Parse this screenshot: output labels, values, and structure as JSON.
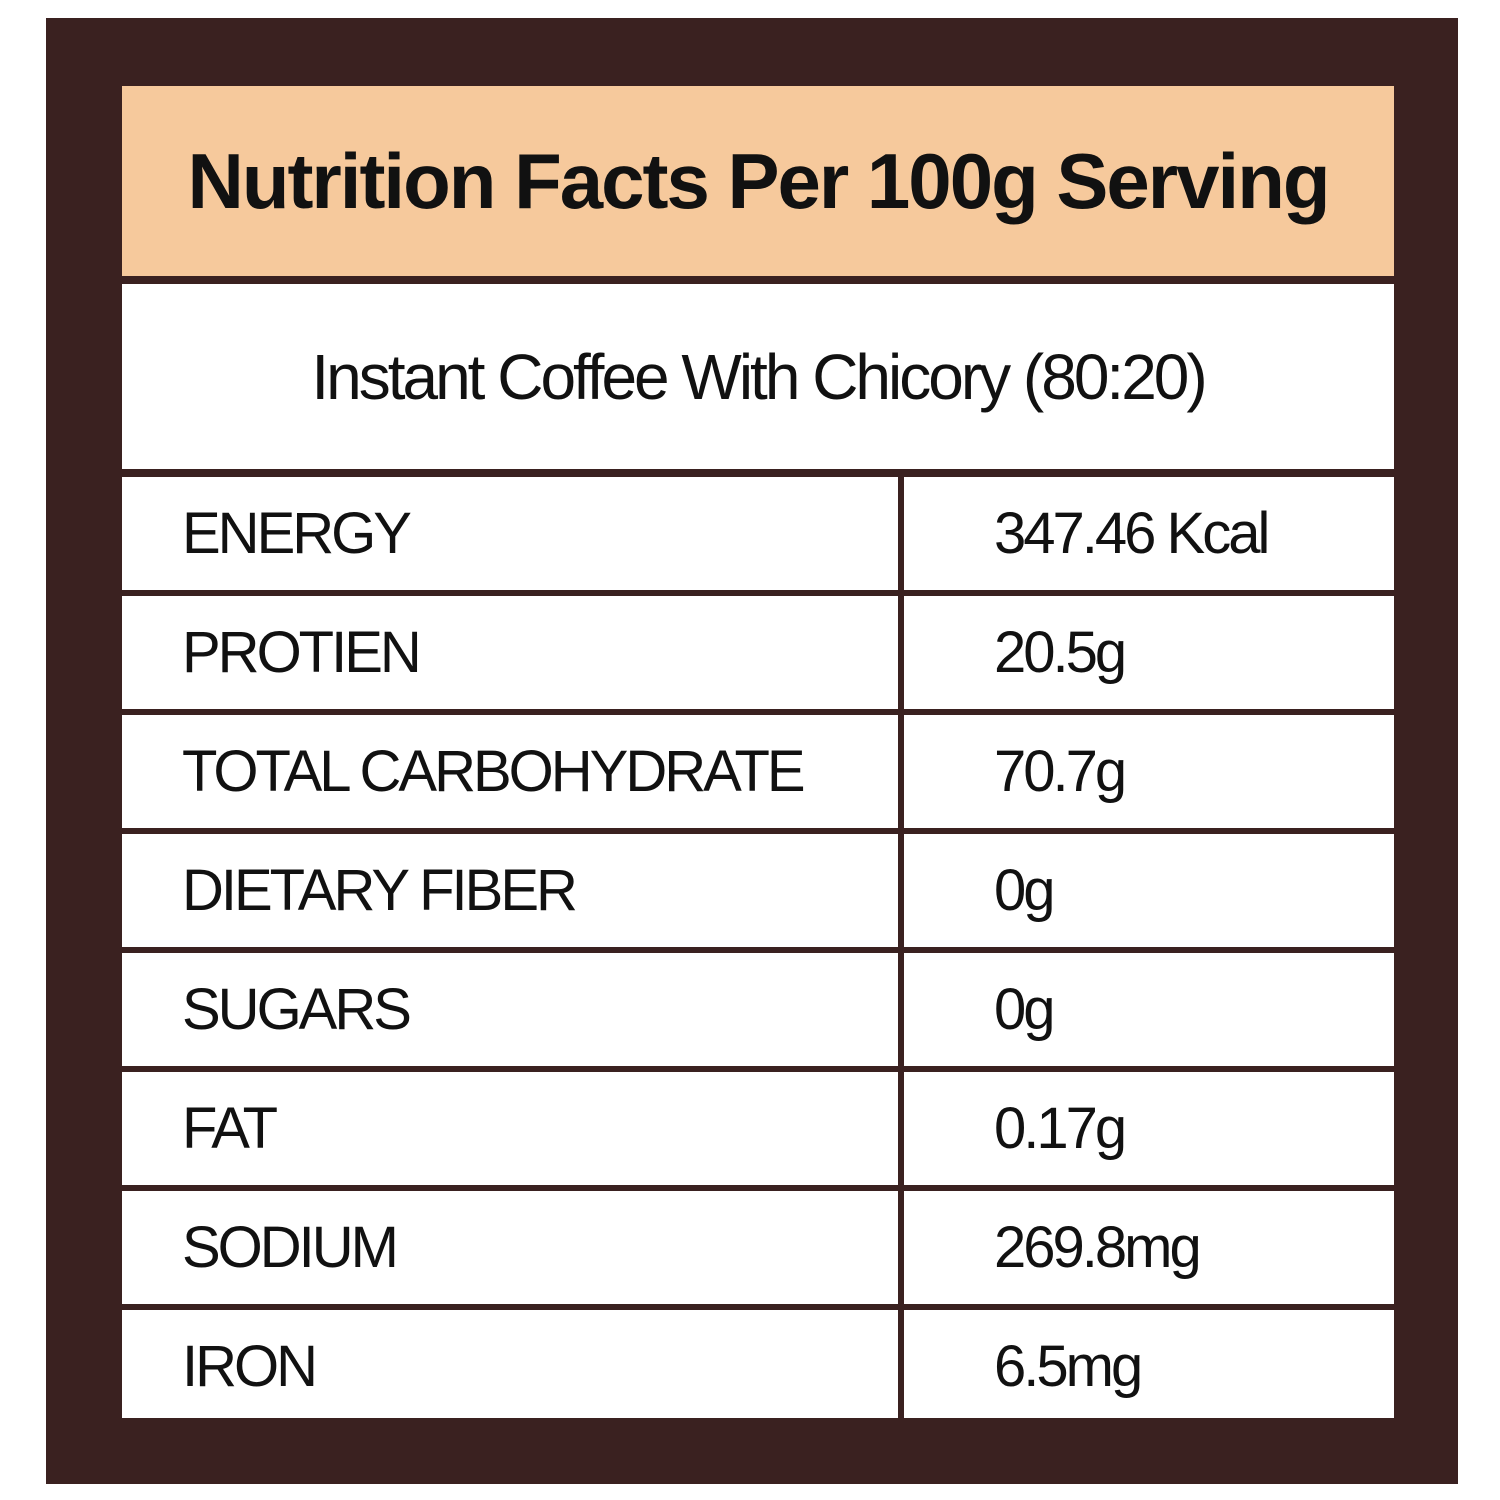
{
  "header": {
    "title": "Nutrition Facts Per 100g Serving",
    "subtitle": "Instant Coffee With Chicory (80:20)"
  },
  "table": {
    "rows": [
      [
        "ENERGY",
        "347.46 Kcal"
      ],
      [
        "PROTIEN",
        "20.5g"
      ],
      [
        "TOTAL CARBOHYDRATE",
        "70.7g"
      ],
      [
        "DIETARY FIBER",
        "0g"
      ],
      [
        "SUGARS",
        "0g"
      ],
      [
        "FAT",
        "0.17g"
      ],
      [
        "SODIUM",
        "269.8mg"
      ],
      [
        "IRON",
        "6.5mg"
      ]
    ]
  }
}
